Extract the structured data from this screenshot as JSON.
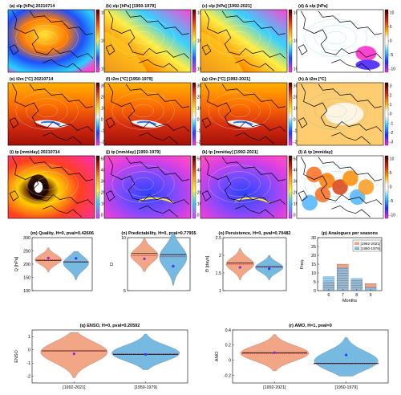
{
  "figure": {
    "maps": {
      "rows": [
        {
          "variable": "slp",
          "panels": [
            {
              "label": "(a) slp [hPa] 20210714",
              "kind": "slp",
              "pattern": 0
            },
            {
              "label": "(b) slp [hPa] [1950-1979]",
              "kind": "slp",
              "pattern": 1
            },
            {
              "label": "(c) slp [hPa] [1992-2021]",
              "kind": "slp",
              "pattern": 2
            },
            {
              "label": "(d) Δ slp [hPa]",
              "kind": "delta-slp",
              "pattern": 3
            }
          ],
          "colorbars": [
            {
              "ticks": [
                "1020",
                "1015",
                "1010"
              ]
            },
            {
              "ticks": [
                "1020",
                "1015",
                "1010"
              ]
            },
            {
              "ticks": [
                "1020",
                "1015",
                "1010"
              ]
            },
            {
              "ticks": [
                "10",
                "5",
                "0",
                "-5",
                "-10"
              ]
            }
          ]
        },
        {
          "variable": "t2m",
          "panels": [
            {
              "label": "(e) t2m [°C] 20210714",
              "kind": "t2m",
              "pattern": 0
            },
            {
              "label": "(f) t2m [°C] [1950-1979]",
              "kind": "t2m",
              "pattern": 1
            },
            {
              "label": "(g) t2m [°C] [1992-2021]",
              "kind": "t2m",
              "pattern": 2
            },
            {
              "label": "(h) Δ t2m [°C]",
              "kind": "delta-t2m",
              "pattern": 3
            }
          ],
          "colorbars": [
            {
              "ticks": [
                "30",
                "20",
                "10",
                "0",
                "-10",
                "-20"
              ]
            },
            {
              "ticks": [
                "30",
                "20",
                "10",
                "0",
                "-10",
                "-20"
              ]
            },
            {
              "ticks": [
                "30",
                "20",
                "10",
                "0",
                "-10",
                "-20"
              ]
            },
            {
              "ticks": [
                "3",
                "2",
                "1",
                "0",
                "-1",
                "-2",
                "-3"
              ]
            }
          ]
        },
        {
          "variable": "tp",
          "panels": [
            {
              "label": "(i) tp [mm/day] 20210714",
              "kind": "tp",
              "pattern": 0
            },
            {
              "label": "(j) tp [mm/day] [1950-1979]",
              "kind": "tp",
              "pattern": 1
            },
            {
              "label": "(k) tp [mm/day] [1992-2021]",
              "kind": "tp",
              "pattern": 2
            },
            {
              "label": "(l) Δ tp [mm/day]",
              "kind": "delta-tp",
              "pattern": 3
            }
          ],
          "colorbars": [
            {
              "ticks": [
                "50",
                "40",
                "30",
                "20",
                "10",
                "0"
              ]
            },
            {
              "ticks": [
                "50",
                "40",
                "30",
                "20",
                "10",
                "0"
              ]
            },
            {
              "ticks": [
                "50",
                "40",
                "30",
                "20",
                "10",
                "0"
              ]
            },
            {
              "ticks": [
                "10",
                "5",
                "0",
                "-5",
                "-10"
              ]
            }
          ]
        }
      ]
    },
    "colors": {
      "period_recent": "#f2a27f",
      "period_past": "#6fb6e0",
      "median_line": "#c0182a",
      "mean_line": "#000000",
      "event_dot": "#8a2be2"
    }
  },
  "chart_data": [
    {
      "id": "m",
      "type": "violin",
      "title": "(m)  Quality, H=0, pval=0.42606",
      "xlabel": "",
      "ylabel": "Q [hPa]",
      "ylim": [
        100,
        300
      ],
      "yticks": [
        "300",
        "250",
        "200",
        "150",
        "100"
      ],
      "xtick_labels": [],
      "series": [
        {
          "name": "[1992-2021]",
          "median": 217,
          "mean": 213,
          "event": 223,
          "min": 170,
          "max": 262
        },
        {
          "name": "[1950-1979]",
          "median": 210,
          "mean": 207,
          "event": 222,
          "min": 140,
          "max": 248
        }
      ]
    },
    {
      "id": "n",
      "type": "violin",
      "title": "(n)  Predictability, H=0, pval=0.77955",
      "xlabel": "",
      "ylabel": "D",
      "ylim": [
        5,
        10
      ],
      "yticks": [
        "10",
        "5"
      ],
      "xtick_labels": [],
      "series": [
        {
          "name": "[1992-2021]",
          "median": 8.3,
          "mean": 8.5,
          "event": 8.0,
          "min": 6.8,
          "max": 10.0
        },
        {
          "name": "[1950-1979]",
          "median": 8.2,
          "mean": 8.4,
          "event": 7.3,
          "min": 5.5,
          "max": 10.5
        }
      ]
    },
    {
      "id": "o",
      "type": "violin",
      "title": "(o)  Persistence, H=0, pval=0.70482",
      "xlabel": "",
      "ylabel": "Θ [days]",
      "ylim": [
        1,
        2.5
      ],
      "yticks": [
        "2.5",
        "2",
        "1.5",
        "1"
      ],
      "xtick_labels": [],
      "series": [
        {
          "name": "[1992-2021]",
          "median": 1.75,
          "mean": 1.78,
          "event": 1.66,
          "min": 1.3,
          "max": 2.2
        },
        {
          "name": "[1950-1979]",
          "median": 1.66,
          "mean": 1.68,
          "event": 1.62,
          "min": 1.3,
          "max": 2.0
        }
      ]
    },
    {
      "id": "p",
      "type": "bar",
      "title": "(p)  Analogues per seasons",
      "xlabel": "Months",
      "ylabel": "Freq.",
      "ylim": [
        0,
        30
      ],
      "yticks": [
        "30",
        "25",
        "20",
        "15",
        "10",
        "5",
        "0"
      ],
      "categories": [
        "6",
        "7",
        "8",
        "9"
      ],
      "legend": "top-right",
      "series": [
        {
          "name": "[1992-2021]",
          "values": [
            5,
            15,
            6,
            4
          ]
        },
        {
          "name": "[1950-1979]",
          "values": [
            8,
            13,
            7,
            2
          ]
        }
      ]
    },
    {
      "id": "q",
      "type": "violin",
      "title": "(q)  ENSO, H=0, pval=0.20592",
      "xlabel": "",
      "ylabel": "ENSO",
      "ylim": [
        -2.5,
        1.5
      ],
      "yticks": [
        "1",
        "0",
        "-1",
        "-2"
      ],
      "xtick_labels": [
        "[1992-2021]",
        "[1950-1979]"
      ],
      "series": [
        {
          "name": "[1992-2021]",
          "median": -0.05,
          "mean": -0.08,
          "event": -0.3,
          "min": -2.1,
          "max": 1.3
        },
        {
          "name": "[1950-1979]",
          "median": -0.3,
          "mean": -0.34,
          "event": -0.35,
          "min": -1.5,
          "max": 1.2
        }
      ]
    },
    {
      "id": "r",
      "type": "violin",
      "title": "(r)  AMO, H=1, pval=0",
      "xlabel": "",
      "ylabel": "AMO",
      "ylim": [
        -0.3,
        0.4
      ],
      "yticks": [
        "0.4",
        "0.2",
        "0",
        "-0.2"
      ],
      "xtick_labels": [
        "[1992-2021]",
        "[1950-1979]"
      ],
      "series": [
        {
          "name": "[1992-2021]",
          "median": 0.09,
          "mean": 0.1,
          "event": 0.1,
          "min": -0.14,
          "max": 0.34
        },
        {
          "name": "[1950-1979]",
          "median": -0.05,
          "mean": -0.04,
          "event": 0.07,
          "min": -0.21,
          "max": 0.3
        }
      ]
    }
  ]
}
